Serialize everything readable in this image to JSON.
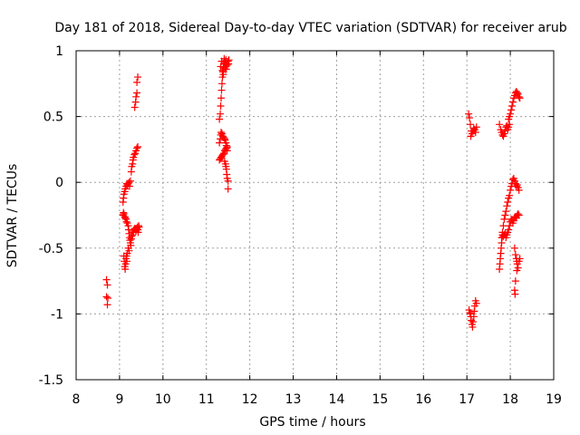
{
  "chart_data": {
    "type": "scatter",
    "title": "Day 181 of 2018, Sidereal Day-to-day VTEC variation (SDTVAR) for receiver arub",
    "xlabel": "GPS time / hours",
    "ylabel": "SDTVAR / TECUs",
    "xlim": [
      8,
      19
    ],
    "ylim": [
      -1.5,
      1
    ],
    "xticks": [
      8,
      9,
      10,
      11,
      12,
      13,
      14,
      15,
      16,
      17,
      18,
      19
    ],
    "yticks": [
      -1.5,
      -1,
      -0.5,
      0,
      0.5,
      1
    ],
    "xtick_labels": [
      "8",
      "9",
      "10",
      "11",
      "12",
      "13",
      "14",
      "15",
      "16",
      "17",
      "18",
      "19"
    ],
    "ytick_labels": [
      "-1.5",
      "-1",
      "-0.5",
      "0",
      "0.5",
      "1"
    ],
    "grid": true,
    "marker": "+",
    "color": "#ff0000",
    "series": [
      {
        "name": "SDTVAR",
        "points": [
          [
            8.7,
            -0.74
          ],
          [
            8.72,
            -0.78
          ],
          [
            8.7,
            -0.87
          ],
          [
            8.73,
            -0.88
          ],
          [
            8.72,
            -0.93
          ],
          [
            9.1,
            -0.56
          ],
          [
            9.11,
            -0.6
          ],
          [
            9.12,
            -0.64
          ],
          [
            9.13,
            -0.66
          ],
          [
            9.14,
            -0.62
          ],
          [
            9.15,
            -0.58
          ],
          [
            9.16,
            -0.56
          ],
          [
            9.17,
            -0.6
          ],
          [
            9.08,
            -0.25
          ],
          [
            9.09,
            -0.23
          ],
          [
            9.1,
            -0.24
          ],
          [
            9.12,
            -0.26
          ],
          [
            9.13,
            -0.27
          ],
          [
            9.15,
            -0.28
          ],
          [
            9.16,
            -0.3
          ],
          [
            9.18,
            -0.31
          ],
          [
            9.2,
            -0.33
          ],
          [
            9.21,
            -0.36
          ],
          [
            9.22,
            -0.39
          ],
          [
            9.23,
            -0.42
          ],
          [
            9.24,
            -0.44
          ],
          [
            9.25,
            -0.46
          ],
          [
            9.26,
            -0.48
          ],
          [
            9.2,
            -0.5
          ],
          [
            9.22,
            -0.52
          ],
          [
            9.18,
            -0.54
          ],
          [
            9.27,
            -0.43
          ],
          [
            9.28,
            -0.41
          ],
          [
            9.3,
            -0.4
          ],
          [
            9.31,
            -0.38
          ],
          [
            9.32,
            -0.37
          ],
          [
            9.33,
            -0.36
          ],
          [
            9.35,
            -0.35
          ],
          [
            9.37,
            -0.36
          ],
          [
            9.38,
            -0.37
          ],
          [
            9.4,
            -0.35
          ],
          [
            9.41,
            -0.34
          ],
          [
            9.42,
            -0.36
          ],
          [
            9.43,
            -0.38
          ],
          [
            9.44,
            -0.33
          ],
          [
            9.45,
            -0.34
          ],
          [
            9.08,
            -0.15
          ],
          [
            9.09,
            -0.12
          ],
          [
            9.1,
            -0.09
          ],
          [
            9.12,
            -0.07
          ],
          [
            9.13,
            -0.05
          ],
          [
            9.15,
            -0.03
          ],
          [
            9.17,
            -0.01
          ],
          [
            9.18,
            -0.02
          ],
          [
            9.2,
            -0.01
          ],
          [
            9.22,
            0.0
          ],
          [
            9.23,
            -0.03
          ],
          [
            9.25,
            0.01
          ],
          [
            9.27,
            0.08
          ],
          [
            9.28,
            0.12
          ],
          [
            9.3,
            0.14
          ],
          [
            9.31,
            0.17
          ],
          [
            9.32,
            0.19
          ],
          [
            9.34,
            0.21
          ],
          [
            9.36,
            0.22
          ],
          [
            9.38,
            0.24
          ],
          [
            9.4,
            0.26
          ],
          [
            9.42,
            0.27
          ],
          [
            9.35,
            0.57
          ],
          [
            9.37,
            0.61
          ],
          [
            9.38,
            0.65
          ],
          [
            9.4,
            0.68
          ],
          [
            9.4,
            0.76
          ],
          [
            9.42,
            0.8
          ],
          [
            11.3,
            0.17
          ],
          [
            11.32,
            0.18
          ],
          [
            11.34,
            0.19
          ],
          [
            11.36,
            0.2
          ],
          [
            11.38,
            0.21
          ],
          [
            11.4,
            0.22
          ],
          [
            11.42,
            0.24
          ],
          [
            11.44,
            0.25
          ],
          [
            11.46,
            0.26
          ],
          [
            11.48,
            0.27
          ],
          [
            11.3,
            0.3
          ],
          [
            11.32,
            0.33
          ],
          [
            11.33,
            0.36
          ],
          [
            11.34,
            0.38
          ],
          [
            11.36,
            0.37
          ],
          [
            11.38,
            0.35
          ],
          [
            11.4,
            0.34
          ],
          [
            11.42,
            0.33
          ],
          [
            11.43,
            0.32
          ],
          [
            11.45,
            0.3
          ],
          [
            11.46,
            0.28
          ],
          [
            11.47,
            0.26
          ],
          [
            11.48,
            0.24
          ],
          [
            11.42,
            0.16
          ],
          [
            11.44,
            0.14
          ],
          [
            11.45,
            0.12
          ],
          [
            11.46,
            0.1
          ],
          [
            11.47,
            0.06
          ],
          [
            11.48,
            0.03
          ],
          [
            11.5,
            0.01
          ],
          [
            11.5,
            -0.05
          ],
          [
            11.3,
            0.48
          ],
          [
            11.32,
            0.52
          ],
          [
            11.33,
            0.58
          ],
          [
            11.34,
            0.64
          ],
          [
            11.35,
            0.7
          ],
          [
            11.36,
            0.75
          ],
          [
            11.37,
            0.8
          ],
          [
            11.38,
            0.84
          ],
          [
            11.39,
            0.87
          ],
          [
            11.4,
            0.9
          ],
          [
            11.42,
            0.92
          ],
          [
            11.44,
            0.91
          ],
          [
            11.45,
            0.88
          ],
          [
            11.46,
            0.86
          ],
          [
            11.48,
            0.89
          ],
          [
            11.5,
            0.92
          ],
          [
            11.51,
            0.9
          ],
          [
            11.52,
            0.93
          ],
          [
            11.33,
            0.88
          ],
          [
            11.35,
            0.92
          ],
          [
            11.37,
            0.85
          ],
          [
            11.39,
            0.82
          ],
          [
            11.41,
            0.94
          ],
          [
            11.43,
            0.86
          ],
          [
            11.45,
            0.93
          ],
          [
            17.04,
            0.52
          ],
          [
            17.06,
            0.49
          ],
          [
            17.08,
            0.44
          ],
          [
            17.1,
            0.39
          ],
          [
            17.09,
            0.35
          ],
          [
            17.12,
            0.37
          ],
          [
            17.14,
            0.39
          ],
          [
            17.16,
            0.41
          ],
          [
            17.18,
            0.4
          ],
          [
            17.2,
            0.38
          ],
          [
            17.22,
            0.42
          ],
          [
            17.05,
            -0.97
          ],
          [
            17.07,
            -0.99
          ],
          [
            17.09,
            -1.02
          ],
          [
            17.1,
            -1.05
          ],
          [
            17.12,
            -1.08
          ],
          [
            17.13,
            -1.1
          ],
          [
            17.14,
            -1.06
          ],
          [
            17.16,
            -1.02
          ],
          [
            17.17,
            -0.98
          ],
          [
            17.18,
            -0.94
          ],
          [
            17.2,
            -0.9
          ],
          [
            17.22,
            -0.92
          ],
          [
            17.08,
            -1.0
          ],
          [
            17.75,
            0.44
          ],
          [
            17.78,
            0.4
          ],
          [
            17.8,
            0.38
          ],
          [
            17.82,
            0.36
          ],
          [
            17.84,
            0.35
          ],
          [
            17.86,
            0.37
          ],
          [
            17.88,
            0.39
          ],
          [
            17.9,
            0.42
          ],
          [
            17.92,
            0.43
          ],
          [
            17.94,
            0.4
          ],
          [
            17.96,
            0.42
          ],
          [
            17.98,
            0.44
          ],
          [
            17.96,
            0.48
          ],
          [
            17.98,
            0.5
          ],
          [
            18.0,
            0.52
          ],
          [
            18.02,
            0.55
          ],
          [
            18.04,
            0.58
          ],
          [
            18.06,
            0.61
          ],
          [
            18.08,
            0.64
          ],
          [
            18.1,
            0.66
          ],
          [
            18.12,
            0.68
          ],
          [
            18.14,
            0.69
          ],
          [
            18.16,
            0.68
          ],
          [
            18.18,
            0.67
          ],
          [
            18.2,
            0.65
          ],
          [
            18.22,
            0.64
          ],
          [
            17.75,
            -0.66
          ],
          [
            17.76,
            -0.62
          ],
          [
            17.77,
            -0.58
          ],
          [
            17.78,
            -0.54
          ],
          [
            17.79,
            -0.5
          ],
          [
            17.8,
            -0.46
          ],
          [
            17.81,
            -0.42
          ],
          [
            17.82,
            -0.38
          ],
          [
            17.84,
            -0.33
          ],
          [
            17.86,
            -0.28
          ],
          [
            17.88,
            -0.25
          ],
          [
            17.8,
            -0.42
          ],
          [
            17.82,
            -0.4
          ],
          [
            17.84,
            -0.41
          ],
          [
            17.86,
            -0.4
          ],
          [
            17.88,
            -0.39
          ],
          [
            17.9,
            -0.42
          ],
          [
            17.92,
            -0.4
          ],
          [
            17.94,
            -0.38
          ],
          [
            17.96,
            -0.36
          ],
          [
            17.98,
            -0.33
          ],
          [
            18.0,
            -0.3
          ],
          [
            18.02,
            -0.28
          ],
          [
            18.04,
            -0.29
          ],
          [
            18.06,
            -0.31
          ],
          [
            18.08,
            -0.29
          ],
          [
            18.1,
            -0.27
          ],
          [
            18.12,
            -0.26
          ],
          [
            18.14,
            -0.27
          ],
          [
            18.16,
            -0.25
          ],
          [
            18.18,
            -0.24
          ],
          [
            18.2,
            -0.25
          ],
          [
            17.9,
            -0.22
          ],
          [
            17.92,
            -0.18
          ],
          [
            17.94,
            -0.15
          ],
          [
            17.96,
            -0.12
          ],
          [
            17.98,
            -0.1
          ],
          [
            18.0,
            -0.06
          ],
          [
            18.02,
            -0.03
          ],
          [
            18.04,
            -0.01
          ],
          [
            18.06,
            0.02
          ],
          [
            18.08,
            0.03
          ],
          [
            18.1,
            0.01
          ],
          [
            18.12,
            -0.01
          ],
          [
            18.14,
            -0.03
          ],
          [
            18.16,
            -0.02
          ],
          [
            18.18,
            -0.04
          ],
          [
            18.2,
            -0.06
          ],
          [
            18.1,
            -0.5
          ],
          [
            18.12,
            -0.55
          ],
          [
            18.14,
            -0.58
          ],
          [
            18.15,
            -0.6
          ],
          [
            18.16,
            -0.62
          ],
          [
            18.18,
            -0.65
          ],
          [
            18.2,
            -0.6
          ],
          [
            18.22,
            -0.58
          ],
          [
            18.12,
            -0.75
          ],
          [
            18.1,
            -0.82
          ],
          [
            18.11,
            -0.85
          ],
          [
            18.15,
            -0.67
          ]
        ]
      }
    ]
  }
}
